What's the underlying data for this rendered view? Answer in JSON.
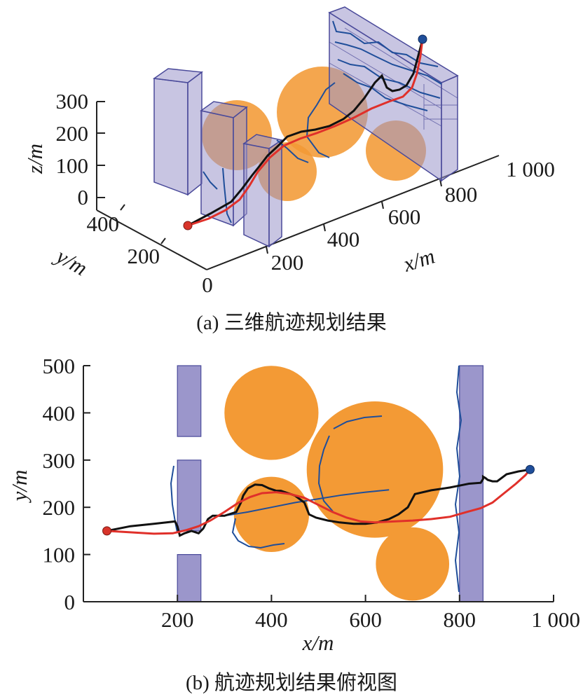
{
  "figure_a": {
    "caption": "(a) 三维航迹规划结果",
    "x_axis_label": "x/m",
    "y_axis_label": "y/m",
    "z_axis_label": "z/m",
    "x_ticks": [
      "200",
      "400",
      "600",
      "800",
      "1 000"
    ],
    "y_ticks": [
      "0",
      "200",
      "400"
    ],
    "z_ticks": [
      "0",
      "100",
      "200",
      "300"
    ]
  },
  "figure_b": {
    "caption": "(b) 航迹规划结果俯视图",
    "x_axis_label": "x/m",
    "y_axis_label": "y/m",
    "x_ticks": [
      "200",
      "400",
      "600",
      "800",
      "1 000"
    ],
    "y_ticks": [
      "0",
      "100",
      "200",
      "300",
      "400",
      "500"
    ]
  },
  "colors": {
    "building_fill": "#9b96cb",
    "building_stroke": "#4a4a9a",
    "threat_fill": "#f39a35",
    "exploration_path": "#1f4e9a",
    "black_path": "#111111",
    "red_path": "#e0302a",
    "start_marker": "#d8342a",
    "goal_marker": "#1f4e9a"
  },
  "chart_data": [
    {
      "type": "scatter",
      "view": "3d",
      "xlabel": "x/m",
      "ylabel": "y/m",
      "zlabel": "z/m",
      "xlim": [
        0,
        1000
      ],
      "ylim": [
        0,
        500
      ],
      "zlim": [
        0,
        300
      ],
      "start": {
        "x": 50,
        "y": 150,
        "z": 10
      },
      "goal": {
        "x": 950,
        "y": 280,
        "z": 300
      }
    },
    {
      "type": "line",
      "view": "top",
      "xlabel": "x/m",
      "ylabel": "y/m",
      "xlim": [
        0,
        1000
      ],
      "ylim": [
        0,
        500
      ],
      "xticks": [
        200,
        400,
        600,
        800,
        1000
      ],
      "yticks": [
        0,
        100,
        200,
        300,
        400,
        500
      ],
      "buildings": [
        {
          "x0": 200,
          "x1": 250,
          "y0": 350,
          "y1": 500
        },
        {
          "x0": 200,
          "x1": 250,
          "y0": 150,
          "y1": 300
        },
        {
          "x0": 200,
          "x1": 250,
          "y0": 0,
          "y1": 100
        },
        {
          "x0": 800,
          "x1": 850,
          "y0": 0,
          "y1": 500
        }
      ],
      "threats": [
        {
          "cx": 400,
          "cy": 400,
          "r": 100
        },
        {
          "cx": 400,
          "cy": 185,
          "r": 80
        },
        {
          "cx": 620,
          "cy": 280,
          "r": 145
        },
        {
          "cx": 700,
          "cy": 80,
          "r": 78
        }
      ],
      "start": {
        "x": 50,
        "y": 150
      },
      "goal": {
        "x": 950,
        "y": 280
      },
      "series": [
        {
          "id": "black",
          "points": [
            [
              50,
              150
            ],
            [
              100,
              160
            ],
            [
              150,
              165
            ],
            [
              195,
              170
            ],
            [
              200,
              160
            ],
            [
              205,
              140
            ],
            [
              215,
              145
            ],
            [
              230,
              150
            ],
            [
              245,
              145
            ],
            [
              255,
              155
            ],
            [
              265,
              175
            ],
            [
              275,
              182
            ],
            [
              300,
              182
            ],
            [
              325,
              190
            ],
            [
              335,
              210
            ],
            [
              340,
              225
            ],
            [
              350,
              240
            ],
            [
              365,
              248
            ],
            [
              380,
              247
            ],
            [
              395,
              240
            ],
            [
              410,
              235
            ],
            [
              420,
              235
            ],
            [
              435,
              230
            ],
            [
              450,
              225
            ],
            [
              470,
              210
            ],
            [
              480,
              185
            ],
            [
              495,
              178
            ],
            [
              520,
              172
            ],
            [
              545,
              168
            ],
            [
              575,
              165
            ],
            [
              600,
              165
            ],
            [
              625,
              168
            ],
            [
              650,
              175
            ],
            [
              670,
              185
            ],
            [
              690,
              200
            ],
            [
              705,
              228
            ],
            [
              740,
              236
            ],
            [
              780,
              242
            ],
            [
              800,
              246
            ],
            [
              820,
              250
            ],
            [
              845,
              252
            ],
            [
              850,
              260
            ],
            [
              850,
              265
            ],
            [
              855,
              262
            ],
            [
              860,
              258
            ],
            [
              870,
              255
            ],
            [
              880,
              255
            ],
            [
              900,
              270
            ],
            [
              925,
              276
            ],
            [
              950,
              280
            ]
          ]
        },
        {
          "id": "red",
          "points": [
            [
              50,
              150
            ],
            [
              100,
              147
            ],
            [
              150,
              144
            ],
            [
              190,
              145
            ],
            [
              220,
              152
            ],
            [
              245,
              160
            ],
            [
              270,
              172
            ],
            [
              300,
              190
            ],
            [
              330,
              210
            ],
            [
              355,
              222
            ],
            [
              380,
              230
            ],
            [
              410,
              232
            ],
            [
              440,
              228
            ],
            [
              470,
              220
            ],
            [
              500,
              205
            ],
            [
              530,
              190
            ],
            [
              560,
              178
            ],
            [
              590,
              170
            ],
            [
              620,
              168
            ],
            [
              660,
              170
            ],
            [
              700,
              172
            ],
            [
              740,
              175
            ],
            [
              780,
              180
            ],
            [
              815,
              190
            ],
            [
              845,
              198
            ],
            [
              870,
              210
            ],
            [
              895,
              230
            ],
            [
              920,
              250
            ],
            [
              940,
              268
            ],
            [
              950,
              280
            ]
          ]
        },
        {
          "id": "blue-diagonal",
          "points": [
            [
              300,
              182
            ],
            [
              350,
              190
            ],
            [
              400,
              200
            ],
            [
              450,
              210
            ],
            [
              500,
              218
            ],
            [
              550,
              226
            ],
            [
              600,
              232
            ],
            [
              650,
              237
            ]
          ]
        }
      ]
    }
  ]
}
